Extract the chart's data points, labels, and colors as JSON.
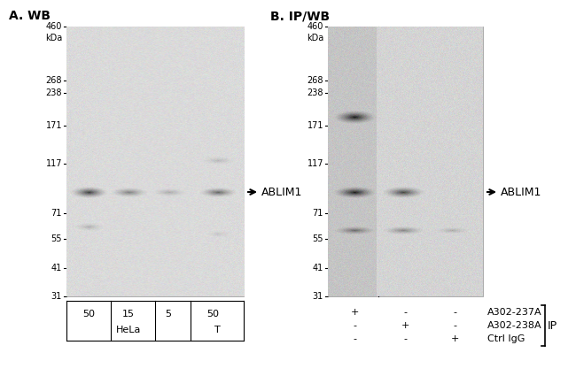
{
  "panel_A_title": "A. WB",
  "panel_B_title": "B. IP/WB",
  "kda_label": "kDa",
  "marker_positions": [
    460,
    268,
    238,
    171,
    117,
    71,
    55,
    41,
    31
  ],
  "marker_labels": [
    "460",
    "268",
    "238",
    "171",
    "117",
    "71",
    "55",
    "41",
    "31"
  ],
  "ablim1_label": "ABLIM1",
  "panel_A_sample_labels": [
    "50",
    "15",
    "5",
    "50"
  ],
  "panel_A_group_labels": [
    "HeLa",
    "T"
  ],
  "panel_B_plus_minus": [
    [
      "+",
      "-",
      "-"
    ],
    [
      "-",
      "+",
      "-"
    ],
    [
      "-",
      "-",
      "+"
    ]
  ],
  "panel_B_antibody_labels": [
    "A302-237A",
    "A302-238A",
    "Ctrl IgG"
  ],
  "panel_B_ip_label": "IP",
  "bg_color_A": "#d8d8d8",
  "bg_color_B_left": "#c8c8c8",
  "bg_color_B_right": "#e0e0e0",
  "gel_bg": "#e8e6e2"
}
